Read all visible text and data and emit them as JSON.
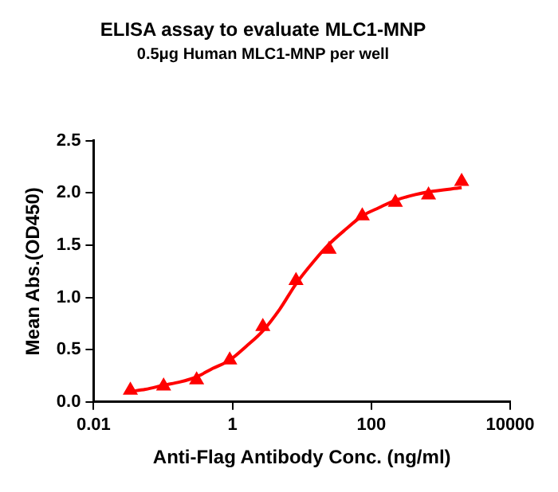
{
  "chart_data": {
    "type": "scatter",
    "title": "ELISA assay to evaluate MLC1-MNP",
    "subtitle": "0.5μg Human MLC1-MNP per well",
    "xlabel": "Anti-Flag Antibody Conc. (ng/ml)",
    "ylabel": "Mean Abs.(OD450)",
    "log": "x",
    "xlim": [
      0.01,
      10000
    ],
    "xticks": [
      0.01,
      1,
      100,
      10000
    ],
    "ylim": [
      0,
      2.5
    ],
    "yticks": [
      {
        "value": 0,
        "label": "0.0"
      },
      0.5,
      {
        "value": 1,
        "label": "1.0"
      },
      1.5,
      {
        "value": 2,
        "label": "2.0"
      },
      2.5
    ],
    "grid": false,
    "legend": false,
    "marker": "triangle",
    "series": [
      {
        "color": "#ff0000",
        "x": [
          0.0339,
          0.102,
          0.305,
          0.914,
          2.74,
          8.23,
          24.7,
          74.1,
          222,
          667,
          2000
        ],
        "values": [
          0.11,
          0.15,
          0.21,
          0.4,
          0.72,
          1.16,
          1.46,
          1.78,
          1.91,
          1.98,
          2.11
        ]
      },
      {
        "type": "line",
        "color": "#ff0000",
        "marker": "none",
        "line_style": "solid",
        "x": [
          0.0339,
          0.056,
          0.102,
          0.173,
          0.305,
          0.52,
          0.914,
          1.57,
          2.74,
          4.83,
          8.23,
          14.6,
          24.7,
          42.4,
          74.1,
          130,
          222,
          667,
          2000
        ],
        "values": [
          0.1,
          0.12,
          0.16,
          0.19,
          0.24,
          0.32,
          0.4,
          0.53,
          0.68,
          0.89,
          1.13,
          1.34,
          1.51,
          1.65,
          1.78,
          1.86,
          1.93,
          2.01,
          2.05
        ]
      }
    ]
  }
}
